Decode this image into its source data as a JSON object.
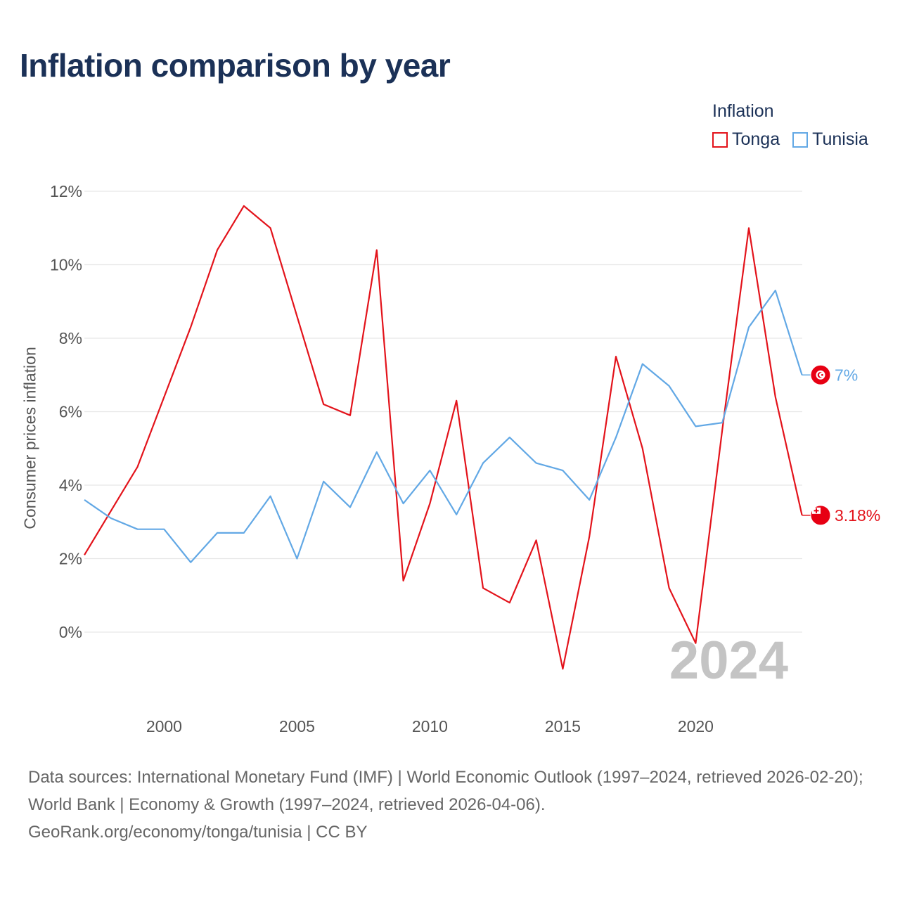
{
  "title": "Inflation comparison by year",
  "legend": {
    "title": "Inflation",
    "items": [
      {
        "label": "Tonga",
        "color": "#e3131b"
      },
      {
        "label": "Tunisia",
        "color": "#62a8e5"
      }
    ]
  },
  "footer": {
    "line1": "Data sources: International Monetary Fund (IMF) | World Economic Outlook (1997–2024, retrieved 2026-02-20); World Bank | Economy & Growth (1997–2024, retrieved 2026-04-06).",
    "line2": "GeoRank.org/economy/tonga/tunisia | CC BY"
  },
  "chart_data": {
    "type": "line",
    "ylabel": "Consumer prices inflation",
    "xlabel": "",
    "xlim": [
      1997,
      2024
    ],
    "ylim": [
      -2,
      12
    ],
    "yticks": [
      0,
      2,
      4,
      6,
      8,
      10,
      12
    ],
    "ytick_labels": [
      "0%",
      "2%",
      "4%",
      "6%",
      "8%",
      "10%",
      "12%"
    ],
    "xticks": [
      2000,
      2005,
      2010,
      2015,
      2020
    ],
    "xtick_labels": [
      "2000",
      "2005",
      "2010",
      "2015",
      "2020"
    ],
    "current_year": "2024",
    "x": [
      1997,
      1998,
      1999,
      2000,
      2001,
      2002,
      2003,
      2004,
      2005,
      2006,
      2007,
      2008,
      2009,
      2010,
      2011,
      2012,
      2013,
      2014,
      2015,
      2016,
      2017,
      2018,
      2019,
      2020,
      2021,
      2022,
      2023,
      2024
    ],
    "series": [
      {
        "name": "Tonga",
        "color": "#e3131b",
        "end_label": "3.18%",
        "values": [
          2.1,
          3.3,
          4.5,
          6.4,
          8.3,
          10.4,
          11.6,
          11.0,
          8.6,
          6.2,
          5.9,
          10.4,
          1.4,
          3.5,
          6.3,
          1.2,
          0.8,
          2.5,
          -1.0,
          2.6,
          7.5,
          5.0,
          1.2,
          -0.3,
          5.5,
          11.0,
          6.4,
          3.18
        ]
      },
      {
        "name": "Tunisia",
        "color": "#62a8e5",
        "end_label": "7%",
        "values": [
          3.6,
          3.1,
          2.8,
          2.8,
          1.9,
          2.7,
          2.7,
          3.7,
          2.0,
          4.1,
          3.4,
          4.9,
          3.5,
          4.4,
          3.2,
          4.6,
          5.3,
          4.6,
          4.4,
          3.6,
          5.3,
          7.3,
          6.7,
          5.6,
          5.7,
          8.3,
          9.3,
          7.0
        ]
      }
    ]
  }
}
